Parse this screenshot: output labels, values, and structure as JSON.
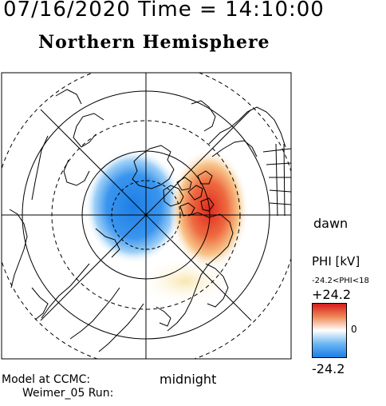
{
  "header": {
    "datetime": "07/16/2020 Time = 14:10:00"
  },
  "map": {
    "title": "Northern Hemisphere",
    "labels": {
      "dawn": "dawn",
      "midnight": "midnight"
    },
    "colors": {
      "negative": "#1c7ee6",
      "positive": "#e02a1e",
      "frame": "#000000"
    }
  },
  "colorbar": {
    "title": "PHI [kV]",
    "range_text": "-24.2<PHI<18",
    "max_label": "+24.2",
    "zero_label": "0",
    "min_label": "-24.2",
    "max_value": 24.2,
    "min_value": -24.2
  },
  "footer": {
    "model_line": "Model at CCMC:",
    "run_line": "Weimer_05 Run:"
  }
}
